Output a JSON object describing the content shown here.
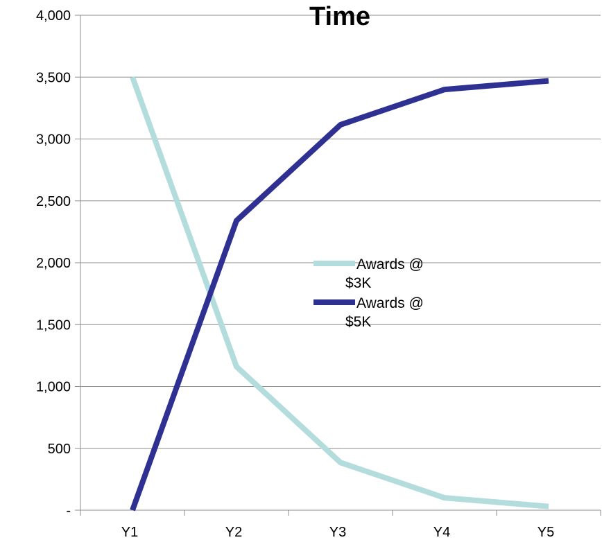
{
  "chart_data": {
    "type": "line",
    "title": "Time",
    "xlabel": "",
    "ylabel": "",
    "categories": [
      "Y1",
      "Y2",
      "Y3",
      "Y4",
      "Y5"
    ],
    "ylim": [
      0,
      4000
    ],
    "yticks": [
      0,
      500,
      1000,
      1500,
      2000,
      2500,
      3000,
      3500,
      4000
    ],
    "ytick_labels": [
      "-",
      "500",
      "1,000",
      "1,500",
      "2,000",
      "2,500",
      "3,000",
      "3,500",
      "4,000"
    ],
    "grid": true,
    "legend_position": "center-right",
    "series": [
      {
        "name": "Awards @ $3K",
        "legend_lines": [
          "Awards @",
          "$3K"
        ],
        "color": "#b3dcdd",
        "values": [
          3500,
          1160,
          385,
          100,
          30
        ]
      },
      {
        "name": "Awards @ $5K",
        "legend_lines": [
          "Awards @",
          "$5K"
        ],
        "color": "#2e3192",
        "values": [
          0,
          2340,
          3115,
          3400,
          3470
        ]
      }
    ]
  }
}
